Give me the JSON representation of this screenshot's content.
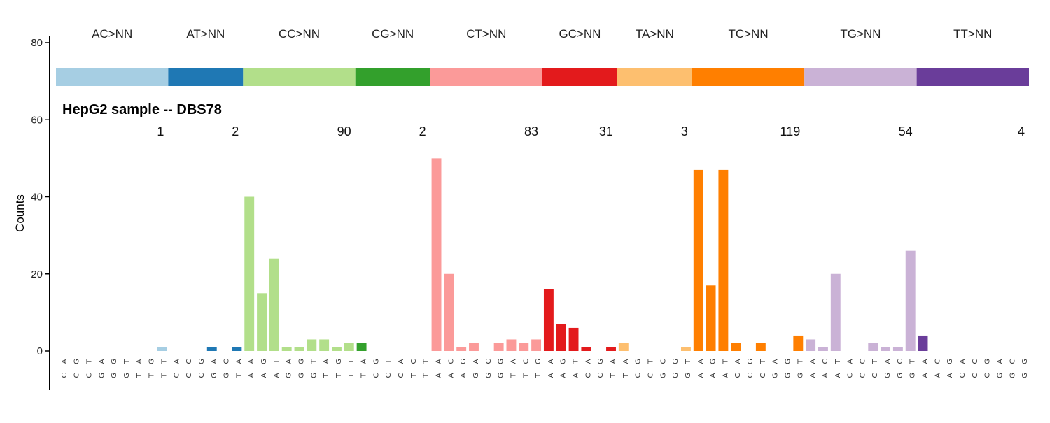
{
  "chart_data": {
    "type": "bar",
    "title": "HepG2 sample -- DBS78",
    "ylabel": "Counts",
    "xlabel": "",
    "ylim": [
      -10,
      82
    ],
    "yticks": [
      0,
      20,
      40,
      60,
      80
    ],
    "grid": false,
    "groups": [
      {
        "name": "AC>NN",
        "color": "#A6CEE3",
        "total": "1",
        "categories": [
          "AC>CA",
          "AC>CG",
          "AC>CT",
          "AC>GA",
          "AC>GG",
          "AC>GT",
          "AC>TA",
          "AC>TG",
          "AC>TT"
        ],
        "ticks": [
          "AC",
          "GC",
          "TC",
          "AG",
          "GG",
          "TG",
          "AT",
          "GT",
          "TT"
        ],
        "values": [
          0,
          0,
          0,
          0,
          0,
          0,
          0,
          0,
          1
        ]
      },
      {
        "name": "AT>NN",
        "color": "#1F78B4",
        "total": "2",
        "categories": [
          "AT>CA",
          "AT>CC",
          "AT>CG",
          "AT>GA",
          "AT>GC",
          "AT>TA"
        ],
        "ticks": [
          "AC",
          "CC",
          "GC",
          "AG",
          "CG",
          "AT"
        ],
        "values": [
          0,
          0,
          0,
          1,
          0,
          1
        ]
      },
      {
        "name": "CC>NN",
        "color": "#B2DF8A",
        "total": "90",
        "categories": [
          "CC>AA",
          "CC>AG",
          "CC>AT",
          "CC>GA",
          "CC>GG",
          "CC>GT",
          "CC>TA",
          "CC>TG",
          "CC>TT"
        ],
        "ticks": [
          "AA",
          "GA",
          "TA",
          "AG",
          "GG",
          "TG",
          "AT",
          "GT",
          "TT"
        ],
        "values": [
          40,
          15,
          24,
          1,
          1,
          3,
          3,
          1,
          2
        ]
      },
      {
        "name": "CG>NN",
        "color": "#33A02C",
        "total": "2",
        "categories": [
          "CG>AT",
          "CG>GC",
          "CG>GT",
          "CG>TA",
          "CG>TC",
          "CG>TT"
        ],
        "ticks": [
          "AT",
          "GC",
          "TC",
          "AC",
          "CT",
          "TT"
        ],
        "values": [
          2,
          0,
          0,
          0,
          0,
          0
        ]
      },
      {
        "name": "CT>NN",
        "color": "#FB9A99",
        "total": "83",
        "categories": [
          "CT>AA",
          "CT>AC",
          "CT>AG",
          "CT>GA",
          "CT>GC",
          "CT>GG",
          "CT>TA",
          "CT>TC",
          "CT>TG"
        ],
        "ticks": [
          "AA",
          "CA",
          "GA",
          "AG",
          "CG",
          "GG",
          "AT",
          "CT",
          "GT"
        ],
        "values": [
          50,
          20,
          1,
          2,
          0,
          2,
          3,
          2,
          3
        ]
      },
      {
        "name": "GC>NN",
        "color": "#E31A1C",
        "total": "31",
        "categories": [
          "GC>AA",
          "GC>AG",
          "GC>AT",
          "GC>CA",
          "GC>CG",
          "GC>TA"
        ],
        "ticks": [
          "AA",
          "GA",
          "TA",
          "AC",
          "GC",
          "AT"
        ],
        "values": [
          16,
          7,
          6,
          1,
          0,
          1
        ]
      },
      {
        "name": "TA>NN",
        "color": "#FDBF6F",
        "total": "3",
        "categories": [
          "TA>AT",
          "TA>CG",
          "TA>CT",
          "TA>GC",
          "TA>GG",
          "TA>GT"
        ],
        "ticks": [
          "AT",
          "GC",
          "TC",
          "CG",
          "GG",
          "TG"
        ],
        "values": [
          2,
          0,
          0,
          0,
          0,
          1
        ]
      },
      {
        "name": "TC>NN",
        "color": "#FF7F00",
        "total": "119",
        "categories": [
          "TC>AA",
          "TC>AG",
          "TC>AT",
          "TC>CA",
          "TC>CG",
          "TC>CT",
          "TC>GA",
          "TC>GG",
          "TC>GT"
        ],
        "ticks": [
          "AA",
          "GA",
          "TA",
          "AC",
          "GC",
          "TC",
          "AG",
          "GG",
          "TG"
        ],
        "values": [
          47,
          17,
          47,
          2,
          0,
          2,
          0,
          0,
          4
        ]
      },
      {
        "name": "TG>NN",
        "color": "#CAB2D6",
        "total": "54",
        "categories": [
          "TG>AA",
          "TG>AC",
          "TG>AT",
          "TG>CA",
          "TG>CC",
          "TG>CT",
          "TG>GA",
          "TG>GC",
          "TG>GT"
        ],
        "ticks": [
          "AA",
          "CA",
          "TA",
          "AC",
          "CC",
          "TC",
          "AG",
          "CG",
          "TG"
        ],
        "values": [
          3,
          1,
          20,
          0,
          0,
          2,
          1,
          1,
          26
        ]
      },
      {
        "name": "TT>NN",
        "color": "#6A3D9A",
        "total": "4",
        "categories": [
          "TT>AA",
          "TT>AC",
          "TT>AG",
          "TT>CA",
          "TT>CC",
          "TT>CG",
          "TT>GA",
          "TT>GC",
          "TT>GG"
        ],
        "ticks": [
          "AA",
          "CA",
          "GA",
          "AC",
          "CC",
          "GC",
          "AG",
          "CG",
          "GG"
        ],
        "values": [
          4,
          0,
          0,
          0,
          0,
          0,
          0,
          0,
          0
        ]
      }
    ]
  }
}
